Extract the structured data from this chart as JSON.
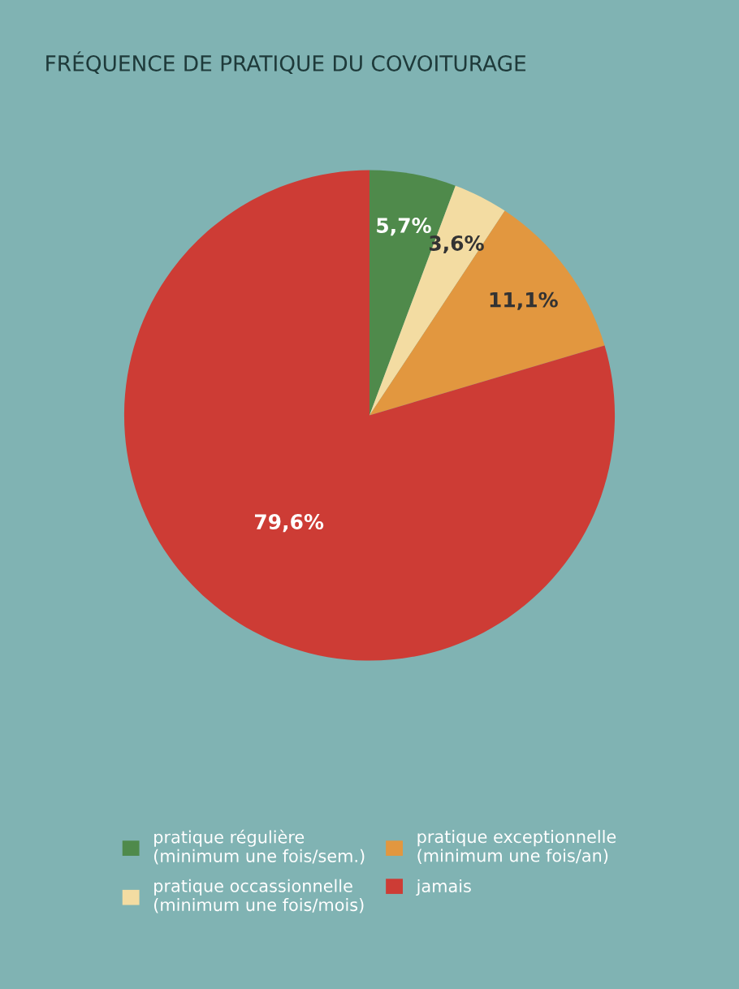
{
  "chart_data": {
    "type": "pie",
    "title": "FRÉQUENCE DE PRATIQUE DU COVOITURAGE",
    "categories": [
      "pratique régulière\n(minimum une fois/sem.)",
      "pratique occassionnelle\n(minimum une fois/mois)",
      "pratique exceptionnelle\n(minimum une fois/an)",
      "jamais"
    ],
    "values": [
      5.7,
      3.6,
      11.1,
      79.6
    ],
    "value_labels": [
      "5,7%",
      "3,6%",
      "11,1%",
      "79,6%"
    ],
    "colors": [
      "#4f8a4b",
      "#f3dca2",
      "#e2973f",
      "#cd3c35"
    ],
    "legend": "bottom"
  }
}
